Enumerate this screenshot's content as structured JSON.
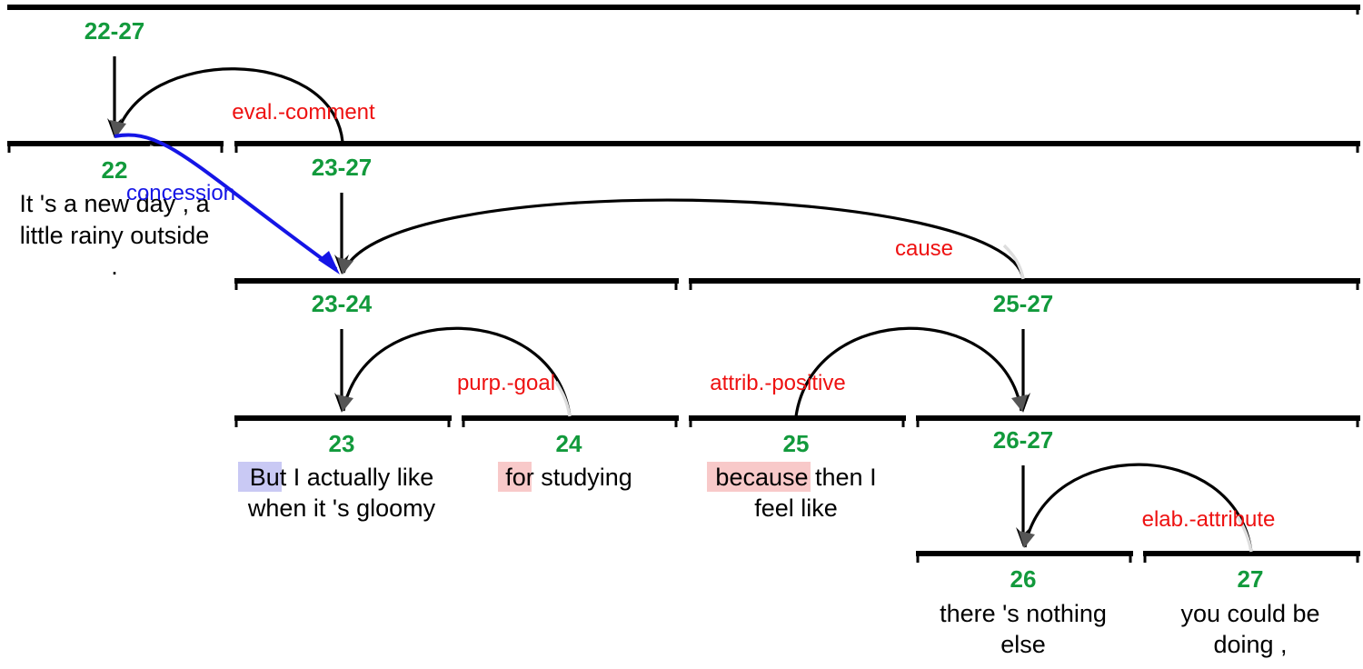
{
  "diagram": {
    "nodes": {
      "n22_27": "22-27",
      "n22": "22",
      "n23_27": "23-27",
      "n23_24": "23-24",
      "n25_27": "25-27",
      "n23": "23",
      "n24": "24",
      "n25": "25",
      "n26_27": "26-27",
      "n26": "26",
      "n27": "27"
    },
    "relations": {
      "eval_comment": "eval.-comment",
      "concession": "concession",
      "cause": "cause",
      "purp_goal": "purp.-goal",
      "attrib_positive": "attrib.-positive",
      "elab_attribute": "elab.-attribute"
    },
    "edus": {
      "e22": {
        "line1": "It 's a new day , a",
        "line2": "little rainy outside",
        "line3": "."
      },
      "e23": {
        "marker": "But",
        "line1_rest": " I actually like",
        "line2": "when it 's gloomy"
      },
      "e24": {
        "marker": "for",
        "line1_rest": " studying"
      },
      "e25": {
        "marker": "because",
        "line1_rest": " then I",
        "line2": "feel like"
      },
      "e26": {
        "line1": "there 's nothing",
        "line2": "else"
      },
      "e27": {
        "line1": "you could be",
        "line2": "doing ,"
      }
    },
    "colors": {
      "span_label": "#129a3c",
      "relation_label": "#ee1111",
      "concession_arrow": "#1515e6",
      "marker_blue": "#c9c9f4",
      "marker_red": "#f8c9c9"
    }
  }
}
